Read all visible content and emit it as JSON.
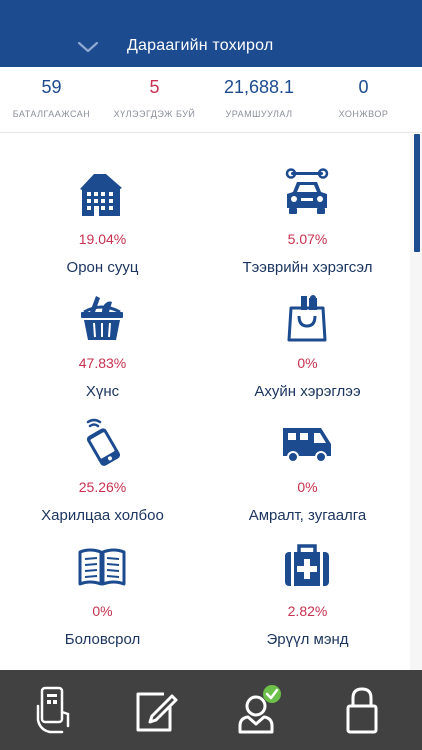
{
  "header": {
    "title": "Дараагийн тохирол",
    "toggle_icon": "chevron-down-icon"
  },
  "stats": [
    {
      "value": "59",
      "label": "БАТАЛГААЖСАН",
      "color": "#1d4b8f"
    },
    {
      "value": "5",
      "label": "ХҮЛЭЭГДЭЖ БУЙ",
      "color": "#c8314f"
    },
    {
      "value": "21,688.1",
      "label": "УРАМШУУЛАЛ",
      "color": "#1d4b8f"
    },
    {
      "value": "0",
      "label": "ХОНЖВОР",
      "color": "#1d4b8f"
    }
  ],
  "categories": [
    {
      "icon": "apartment-building-icon",
      "percent": "19.04%",
      "label": "Орон сууц"
    },
    {
      "icon": "car-wrench-icon",
      "percent": "5.07%",
      "label": "Тээврийн хэрэгсэл"
    },
    {
      "icon": "grocery-basket-icon",
      "percent": "47.83%",
      "label": "Хүнс"
    },
    {
      "icon": "shopping-bag-icon",
      "percent": "0%",
      "label": "Ахуйн хэрэглээ"
    },
    {
      "icon": "mobile-phone-icon",
      "percent": "25.26%",
      "label": "Харилцаа холбоо"
    },
    {
      "icon": "camper-van-icon",
      "percent": "0%",
      "label": "Амралт, зугаалга"
    },
    {
      "icon": "open-book-icon",
      "percent": "0%",
      "label": "Боловсрол"
    },
    {
      "icon": "first-aid-kit-icon",
      "percent": "2.82%",
      "label": "Эрүүл мэнд"
    }
  ],
  "tabbar": {
    "tabs": [
      {
        "icon": "phone-hand-icon"
      },
      {
        "icon": "edit-note-icon"
      },
      {
        "icon": "verified-user-icon"
      },
      {
        "icon": "lock-icon"
      }
    ]
  },
  "colors": {
    "primary": "#1d4b8f",
    "accent": "#c8314f",
    "tabbar": "#414141"
  }
}
